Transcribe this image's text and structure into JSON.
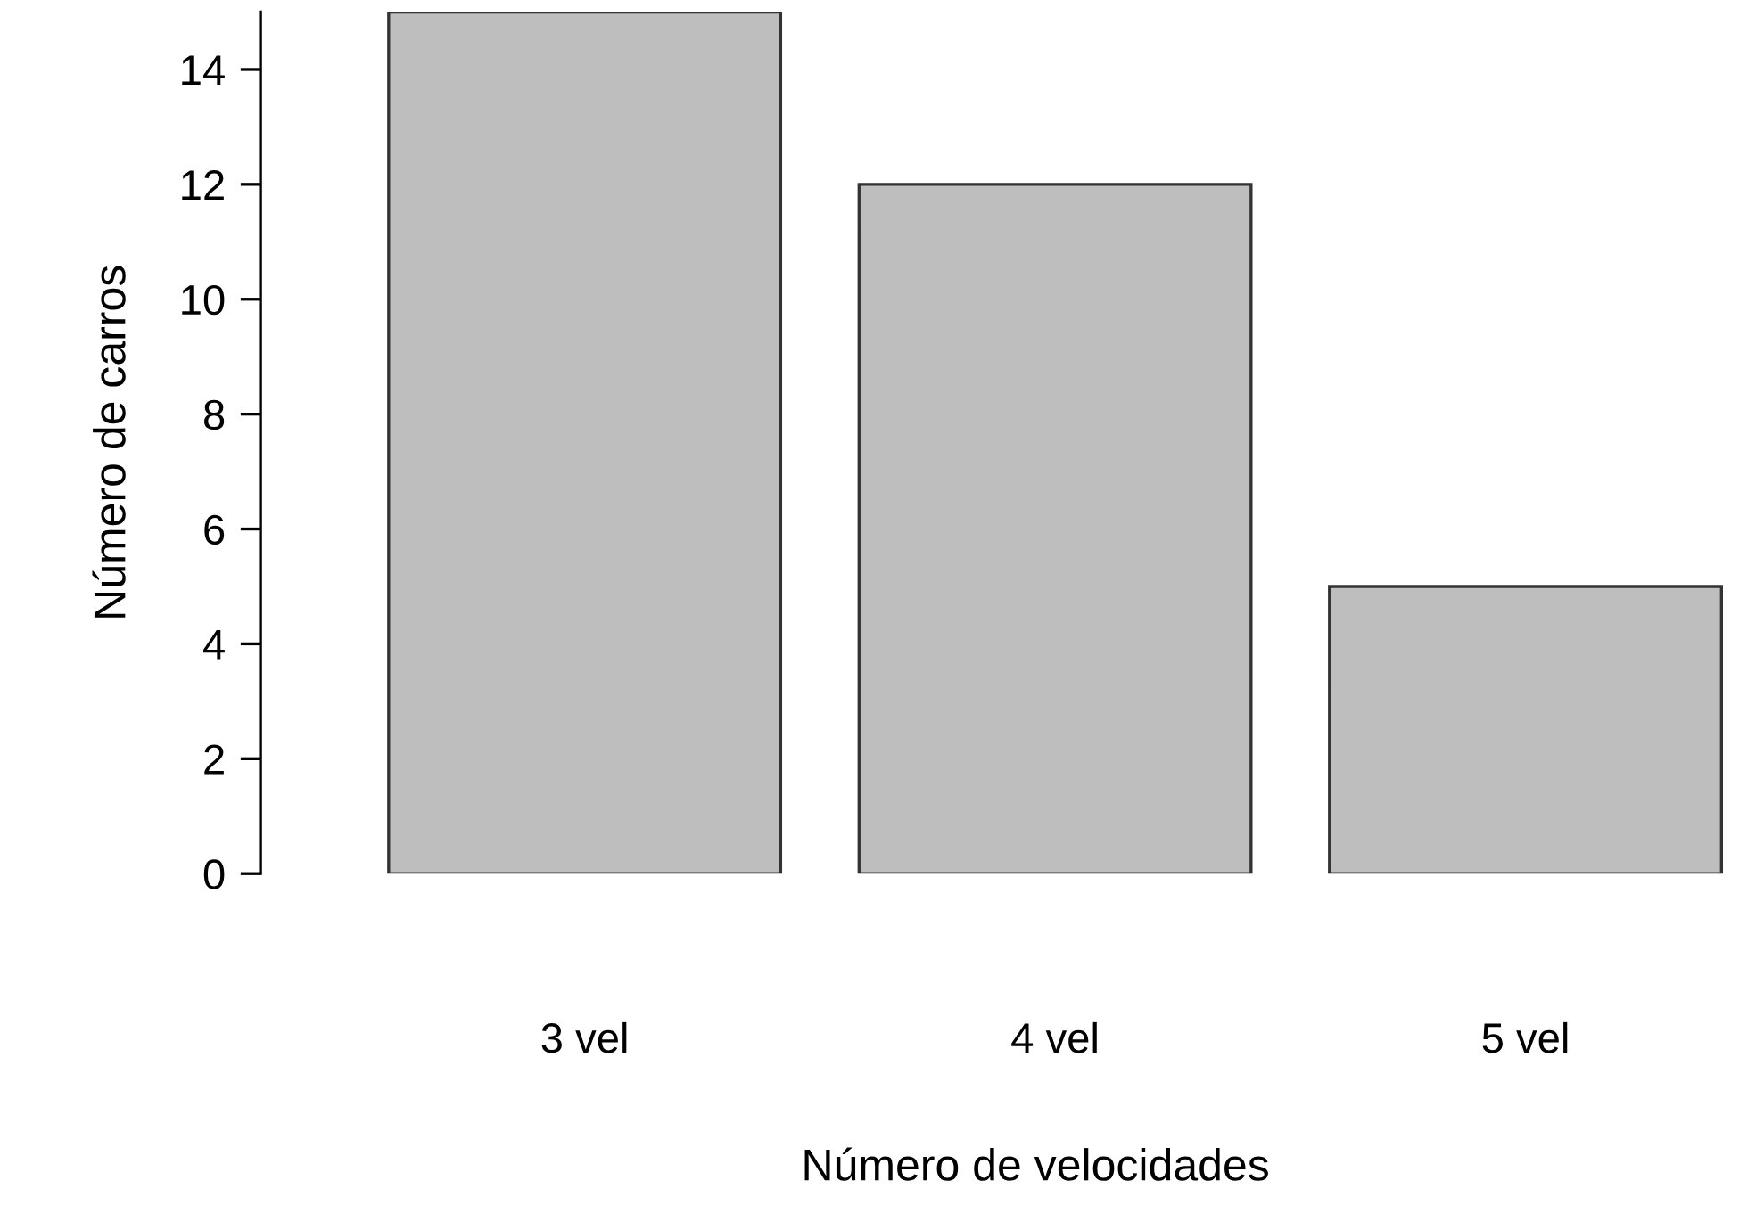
{
  "chart_data": {
    "type": "bar",
    "xlabel": "Número de velocidades",
    "ylabel": "Número de carros",
    "categories": [
      "3 vel",
      "4 vel",
      "5 vel"
    ],
    "values": [
      15,
      12,
      5
    ],
    "color": "#bebebe",
    "ylim": [
      0,
      15
    ],
    "yticks": [
      0,
      2,
      4,
      6,
      8,
      10,
      12,
      14
    ],
    "grid": false
  }
}
